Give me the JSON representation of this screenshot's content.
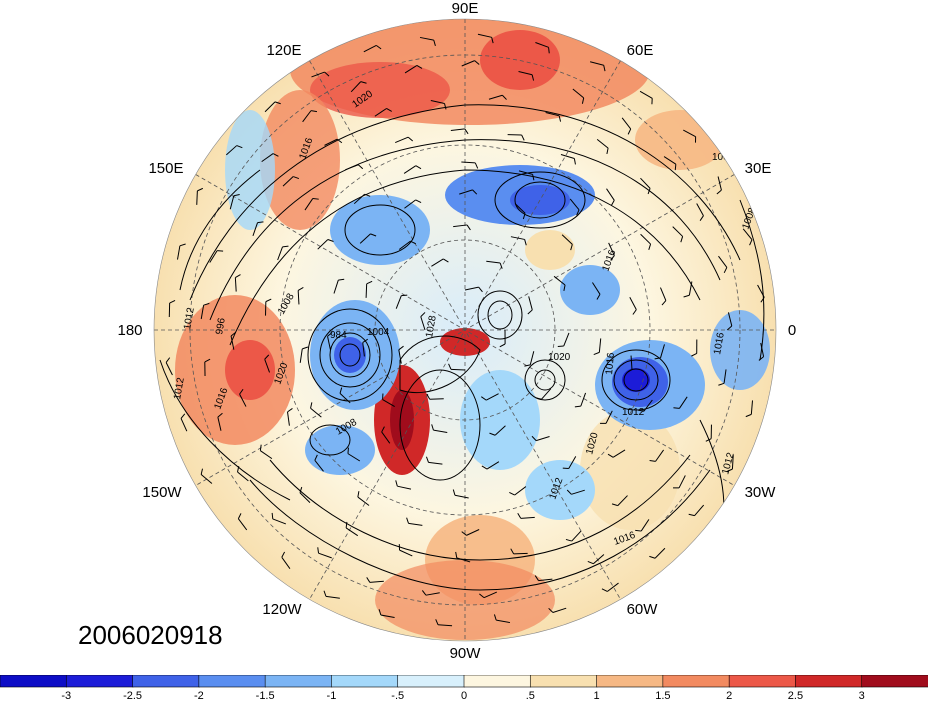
{
  "map": {
    "timestamp": "2006020918",
    "longitude_labels": [
      "90E",
      "60E",
      "120E",
      "30E",
      "150E",
      "180",
      "0",
      "150W",
      "30W",
      "120W",
      "60W",
      "90W"
    ],
    "contour_labels": [
      "1008",
      "1020",
      "1016",
      "1012",
      "996",
      "984",
      "1004",
      "1008",
      "1020",
      "1016",
      "1008",
      "1012",
      "1020",
      "1016",
      "1012",
      "1016",
      "1012",
      "1008",
      "1020",
      "1016",
      "1028",
      "1012",
      "1016"
    ]
  },
  "colorbar": {
    "tick_labels": [
      "-3",
      "-2.5",
      "-2",
      "-1.5",
      "-1",
      "-.5",
      "0",
      ".5",
      "1",
      "1.5",
      "2",
      "2.5",
      "3"
    ],
    "colors": [
      "#1c1cd8",
      "#3f62e8",
      "#5a8ef0",
      "#7bb4f4",
      "#a4d8fa",
      "#d8f0fc",
      "#fdf6e0",
      "#f8e0b0",
      "#f6b884",
      "#f28a60",
      "#ec5848",
      "#d02828",
      "#a00c1c"
    ]
  }
}
